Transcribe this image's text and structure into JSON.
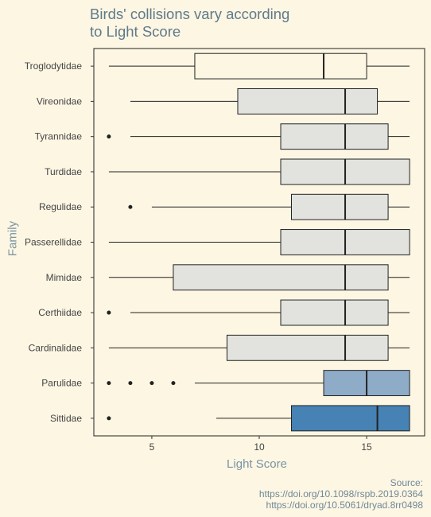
{
  "chart_data": {
    "type": "boxplot",
    "title": "Birds' collisions vary according\nto Light Score",
    "xlabel": "Light Score",
    "ylabel": "Family",
    "xlim": [
      2.3,
      17.7
    ],
    "x_ticks": [
      5,
      10,
      15
    ],
    "grid": false,
    "legend": "none",
    "categories": [
      "Troglodytidae",
      "Vireonidae",
      "Tyrannidae",
      "Turdidae",
      "Regulidae",
      "Passerellidae",
      "Mimidae",
      "Certhiidae",
      "Cardinalidae",
      "Parulidae",
      "Sittidae"
    ],
    "boxes": [
      {
        "family": "Troglodytidae",
        "whisker_low": 3,
        "q1": 7,
        "median": 13,
        "q3": 15,
        "whisker_high": 17,
        "outliers": [],
        "color": "#fdf6e3"
      },
      {
        "family": "Vireonidae",
        "whisker_low": 4,
        "q1": 9,
        "median": 14,
        "q3": 15.5,
        "whisker_high": 17,
        "outliers": [],
        "color": "#e2e3de"
      },
      {
        "family": "Tyrannidae",
        "whisker_low": 4,
        "q1": 11,
        "median": 14,
        "q3": 16,
        "whisker_high": 17,
        "outliers": [
          3
        ],
        "color": "#e2e3de"
      },
      {
        "family": "Turdidae",
        "whisker_low": 3,
        "q1": 11,
        "median": 14,
        "q3": 17,
        "whisker_high": 17,
        "outliers": [],
        "color": "#e2e3de"
      },
      {
        "family": "Regulidae",
        "whisker_low": 5,
        "q1": 11.5,
        "median": 14,
        "q3": 16,
        "whisker_high": 17,
        "outliers": [
          4
        ],
        "color": "#e2e3de"
      },
      {
        "family": "Passerellidae",
        "whisker_low": 3,
        "q1": 11,
        "median": 14,
        "q3": 17,
        "whisker_high": 17,
        "outliers": [],
        "color": "#e2e3de"
      },
      {
        "family": "Mimidae",
        "whisker_low": 3,
        "q1": 6,
        "median": 14,
        "q3": 16,
        "whisker_high": 17,
        "outliers": [],
        "color": "#e2e3de"
      },
      {
        "family": "Certhiidae",
        "whisker_low": 4,
        "q1": 11,
        "median": 14,
        "q3": 16,
        "whisker_high": 17,
        "outliers": [
          3
        ],
        "color": "#e2e3de"
      },
      {
        "family": "Cardinalidae",
        "whisker_low": 3,
        "q1": 8.5,
        "median": 14,
        "q3": 16,
        "whisker_high": 17,
        "outliers": [],
        "color": "#e2e3de"
      },
      {
        "family": "Parulidae",
        "whisker_low": 7,
        "q1": 13,
        "median": 15,
        "q3": 17,
        "whisker_high": 17,
        "outliers": [
          3,
          4,
          5,
          6
        ],
        "color": "#8eabc8"
      },
      {
        "family": "Sittidae",
        "whisker_low": 8,
        "q1": 11.5,
        "median": 15.5,
        "q3": 17,
        "whisker_high": 17,
        "outliers": [
          3
        ],
        "color": "#4682b4"
      }
    ]
  },
  "caption": {
    "line1": "Source:",
    "line2": "https://doi.org/10.1098/rspb.2019.0364",
    "line3": "https://doi.org/10.5061/dryad.8rr0498"
  }
}
